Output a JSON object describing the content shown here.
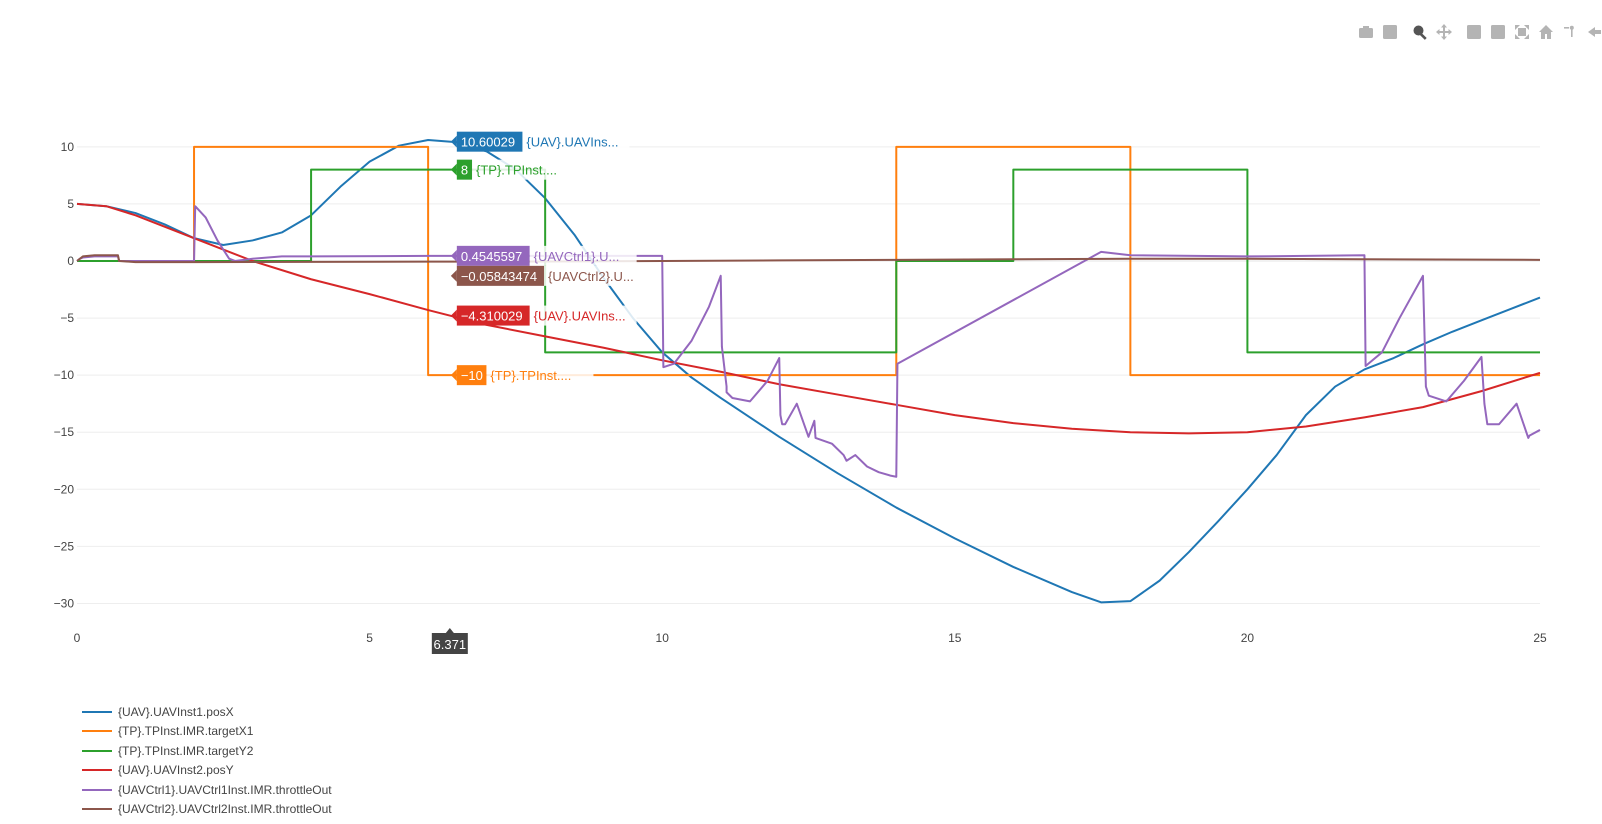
{
  "modebar": {
    "icons": [
      "camera-icon",
      "save-icon",
      "zoom-icon",
      "pan-icon",
      "zoom-in-icon",
      "zoom-out-icon",
      "autoscale-icon",
      "home-icon",
      "spike-lines-icon",
      "hover-closest-icon"
    ]
  },
  "chart_data": {
    "type": "line",
    "title": "",
    "xlabel": "",
    "ylabel": "",
    "xlim": [
      0,
      25
    ],
    "ylim": [
      -32.5,
      12
    ],
    "xticks": [
      0,
      5,
      10,
      15,
      20,
      25
    ],
    "xtick_labels": [
      "0",
      "5",
      "10",
      "15",
      "20",
      "25"
    ],
    "yticks": [
      10,
      5,
      0,
      -5,
      -10,
      -15,
      -20,
      -25,
      -30
    ],
    "ytick_labels": [
      "10",
      "5",
      "0",
      "−5",
      "−10",
      "−15",
      "−20",
      "−25",
      "−30"
    ],
    "grid": true,
    "legend_position": "bottom-left",
    "hover_x": 6.371,
    "hover_x_label": "6.371",
    "series": [
      {
        "name": "{UAV}.UAVInst1.posX",
        "color": "#1f77b4",
        "shape": "linear",
        "hover_value": "10.60029",
        "hover_label": "{UAV}.UAVIns...",
        "x": [
          0,
          0.5,
          1,
          1.5,
          2,
          2.5,
          3,
          3.5,
          4,
          4.5,
          5,
          5.5,
          6,
          6.5,
          7,
          7.5,
          8,
          8.5,
          9,
          9.5,
          10,
          10.5,
          11,
          12,
          13,
          14,
          15,
          16,
          17,
          17.5,
          18,
          18.5,
          19,
          19.5,
          20,
          20.5,
          21,
          21.5,
          22,
          22.5,
          23,
          23.5,
          24,
          24.5,
          25
        ],
        "y": [
          5,
          4.8,
          4.2,
          3.2,
          2,
          1.4,
          1.8,
          2.5,
          4,
          6.5,
          8.7,
          10.1,
          10.6,
          10.4,
          9.6,
          8,
          5.5,
          2.3,
          -1.5,
          -5,
          -8,
          -10.2,
          -12,
          -15.4,
          -18.6,
          -21.6,
          -24.3,
          -26.8,
          -29,
          -29.9,
          -29.8,
          -28,
          -25.5,
          -22.8,
          -20,
          -17,
          -13.5,
          -11,
          -9.5,
          -8.5,
          -7.3,
          -6.2,
          -5.2,
          -4.2,
          -3.2
        ]
      },
      {
        "name": "{TP}.TPInst.IMR.targetX1",
        "color": "#ff7f0e",
        "shape": "hv",
        "hover_value": "−10",
        "hover_label": "{TP}.TPInst....",
        "x": [
          0,
          2,
          6,
          14,
          18,
          25
        ],
        "y": [
          0,
          10,
          -10,
          10,
          -10,
          -10
        ]
      },
      {
        "name": "{TP}.TPInst.IMR.targetY2",
        "color": "#2ca02c",
        "shape": "hv",
        "hover_value": "8",
        "hover_label": "{TP}.TPInst....",
        "x": [
          0,
          4,
          8,
          14,
          16,
          20,
          25
        ],
        "y": [
          0,
          8,
          -8,
          0,
          8,
          -8,
          -8
        ]
      },
      {
        "name": "{UAV}.UAVInst2.posY",
        "color": "#d62728",
        "shape": "linear",
        "hover_value": "−4.310029",
        "hover_label": "{UAV}.UAVIns...",
        "x": [
          0,
          0.5,
          1,
          2,
          3,
          4,
          5,
          6,
          7,
          8,
          9,
          10,
          11,
          12,
          13,
          14,
          15,
          16,
          17,
          18,
          19,
          20,
          21,
          22,
          23,
          24,
          25
        ],
        "y": [
          5,
          4.8,
          4,
          2,
          0,
          -1.6,
          -2.9,
          -4.3,
          -5.6,
          -6.6,
          -7.6,
          -8.7,
          -9.7,
          -10.8,
          -11.7,
          -12.6,
          -13.5,
          -14.2,
          -14.7,
          -15,
          -15.1,
          -15,
          -14.5,
          -13.7,
          -12.8,
          -11.4,
          -9.8
        ]
      },
      {
        "name": "{UAVCtrl1}.UAVCtrl1Inst.IMR.throttleOut",
        "color": "#9467bd",
        "shape": "linear",
        "hover_value": "0.4545597",
        "hover_label": "{UAVCtrl1}.U...",
        "x": [
          0,
          0.05,
          0.1,
          0.3,
          0.6,
          0.7,
          0.72,
          2,
          2.02,
          2.2,
          2.4,
          2.6,
          2.7,
          3,
          3.5,
          4,
          6,
          8,
          10,
          10.02,
          10.2,
          10.5,
          10.8,
          11,
          11.02,
          11.1,
          11.1,
          11.2,
          11.5,
          11.8,
          12,
          12.02,
          12.05,
          12.1,
          12.3,
          12.5,
          12.6,
          12.62,
          12.9,
          13.1,
          13.15,
          13.3,
          13.5,
          13.7,
          13.9,
          14,
          14.02,
          17.5,
          18,
          20,
          22,
          22.02,
          22.3,
          22.6,
          23,
          23.05,
          23.1,
          23.4,
          23.7,
          24,
          24.05,
          24.1,
          24.3,
          24.6,
          24.8,
          24.82,
          25
        ],
        "y": [
          0,
          0.2,
          0.3,
          0.4,
          0.4,
          0.4,
          0,
          0,
          4.8,
          3.8,
          1.8,
          0.2,
          0,
          0.2,
          0.4,
          0.4,
          0.45,
          0.45,
          0.45,
          -9.3,
          -9,
          -7,
          -4,
          -1.3,
          -7.5,
          -11,
          -11.5,
          -12,
          -12.3,
          -10.5,
          -8.5,
          -13.5,
          -14.3,
          -14.3,
          -12.5,
          -15.4,
          -14,
          -15.5,
          -16,
          -17,
          -17.5,
          -17,
          -18,
          -18.5,
          -18.8,
          -18.9,
          -9,
          0.8,
          0.5,
          0.4,
          0.5,
          -9.2,
          -8,
          -5,
          -1.3,
          -11,
          -11.8,
          -12.3,
          -10.5,
          -8.4,
          -12.5,
          -14.3,
          -14.3,
          -12.5,
          -15.5,
          -15.3,
          -14.8
        ]
      },
      {
        "name": "{UAVCtrl2}.UAVCtrl2Inst.IMR.throttleOut",
        "color": "#8c564b",
        "shape": "linear",
        "hover_value": "−0.05843474",
        "hover_label": "{UAVCtrl2}.U...",
        "x": [
          0,
          0.1,
          0.3,
          0.6,
          0.7,
          0.72,
          1,
          2,
          4,
          6,
          8,
          10,
          12,
          14,
          16,
          18,
          20,
          22,
          25
        ],
        "y": [
          0,
          0.4,
          0.5,
          0.5,
          0.5,
          0,
          -0.1,
          -0.1,
          -0.08,
          -0.06,
          -0.05,
          0,
          0.05,
          0.1,
          0.15,
          0.2,
          0.2,
          0.15,
          0.1
        ]
      }
    ]
  }
}
